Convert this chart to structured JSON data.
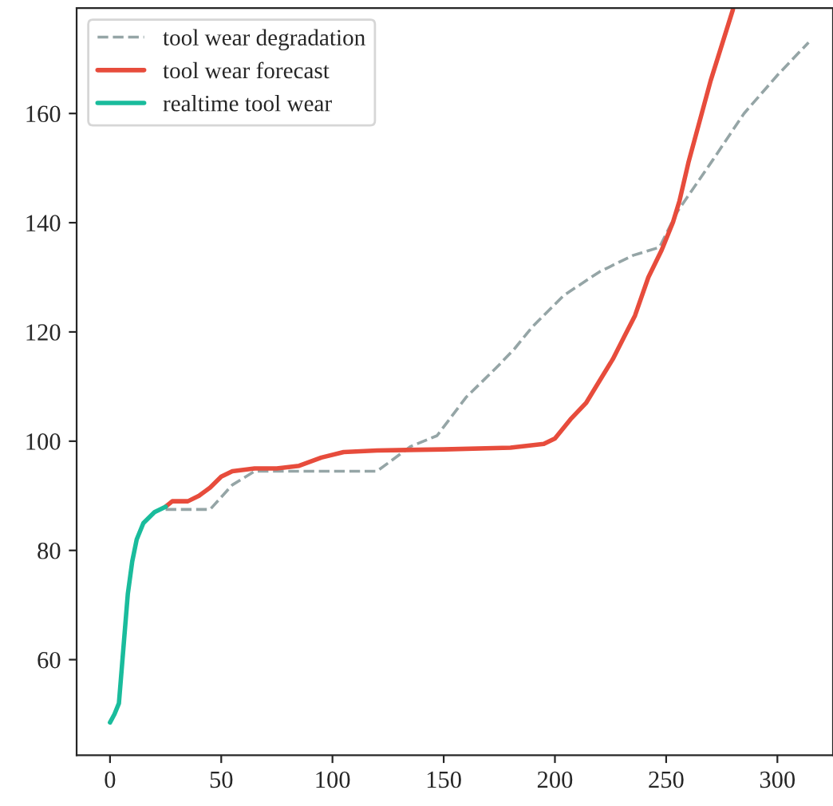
{
  "chart_data": {
    "type": "line",
    "xlim": [
      -15,
      325
    ],
    "ylim": [
      42.5,
      179.3
    ],
    "xticks": [
      0,
      50,
      100,
      150,
      200,
      250,
      300
    ],
    "yticks": [
      60,
      80,
      100,
      120,
      140,
      160
    ],
    "legend": "top left",
    "grid": false,
    "series": [
      {
        "name": "tool wear degradation",
        "color": "#95a5a6",
        "line_style": "dashed",
        "x": [
          25,
          45,
          55,
          65,
          120,
          135,
          147,
          160,
          175,
          182,
          190,
          204,
          220,
          235,
          247,
          255,
          271,
          285,
          300,
          314
        ],
        "values": [
          87.5,
          87.5,
          92,
          94.5,
          94.5,
          99,
          101,
          108,
          114,
          117,
          121,
          126.7,
          131,
          134,
          135.5,
          142,
          151.5,
          160,
          167,
          173
        ]
      },
      {
        "name": "tool wear forecast",
        "color": "#e74c3c",
        "line_style": "solid",
        "x": [
          25,
          28,
          35,
          40,
          45,
          50,
          55,
          65,
          75,
          85,
          95,
          105,
          120,
          150,
          180,
          195,
          200,
          207,
          214,
          220,
          226,
          231,
          236,
          242,
          248,
          253,
          256,
          260,
          270,
          280
        ],
        "values": [
          88,
          89,
          89,
          90,
          91.5,
          93.5,
          94.5,
          95,
          95,
          95.5,
          97,
          98,
          98.3,
          98.5,
          98.8,
          99.5,
          100.5,
          104,
          107,
          111,
          115,
          119,
          123,
          130,
          135,
          140,
          144,
          151,
          166,
          179
        ]
      },
      {
        "name": "realtime tool wear",
        "color": "#1abc9c",
        "line_style": "solid",
        "x": [
          0,
          2,
          4,
          6,
          8,
          10,
          12,
          15,
          20,
          25
        ],
        "values": [
          48.5,
          50,
          52,
          62,
          72,
          78,
          82,
          85,
          87,
          88
        ]
      }
    ]
  }
}
